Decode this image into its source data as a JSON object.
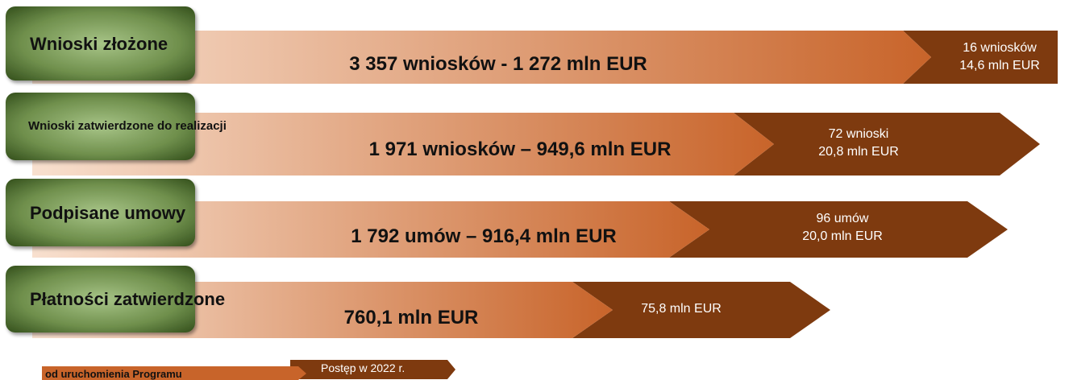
{
  "rows": [
    {
      "label": "Wnioski złożone",
      "total": "3 357 wniosków - 1 272 mln EUR",
      "progress": [
        "16 wniosków",
        "14,6 mln EUR"
      ]
    },
    {
      "label": "Wnioski zatwierdzone do realizacji",
      "total": "1 971 wniosków – 949,6 mln EUR",
      "progress": [
        "72 wnioski",
        "20,8 mln EUR"
      ]
    },
    {
      "label": "Podpisane umowy",
      "total": "1 792 umów – 916,4 mln EUR",
      "progress": [
        "96 umów",
        "20,0 mln EUR"
      ]
    },
    {
      "label": "Płatności zatwierdzone",
      "total": "760,1 mln EUR",
      "progress": [
        "75,8 mln EUR"
      ]
    }
  ],
  "legend": {
    "total": "od uruchomienia Programu",
    "progress": "Postęp w 2022 r."
  }
}
